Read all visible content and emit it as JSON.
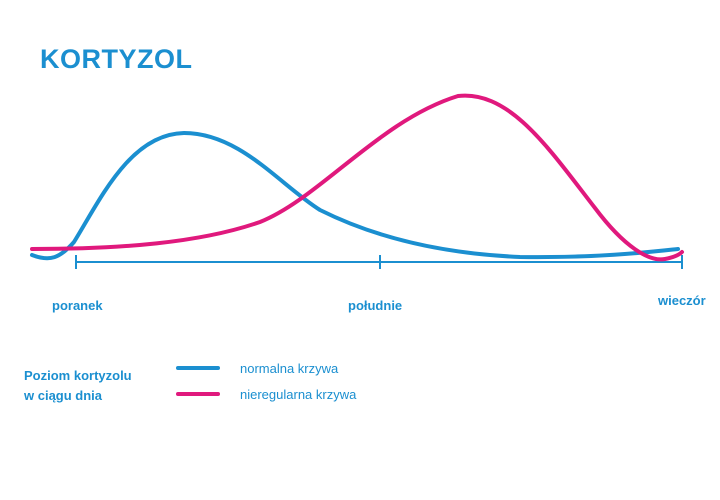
{
  "chart_data": {
    "type": "line",
    "title": "KORTYZOL",
    "x_labels": [
      "poranek",
      "południe",
      "wieczór"
    ],
    "grid": false,
    "series": [
      {
        "name": "normalna krzywa",
        "color": "#1b8fd0"
      },
      {
        "name": "nieregularna krzywa",
        "color": "#e0197d"
      }
    ],
    "legend": {
      "title_lines": [
        "Poziom kortyzolu",
        "w ciągu dnia"
      ],
      "placement": "bottom-left"
    }
  }
}
